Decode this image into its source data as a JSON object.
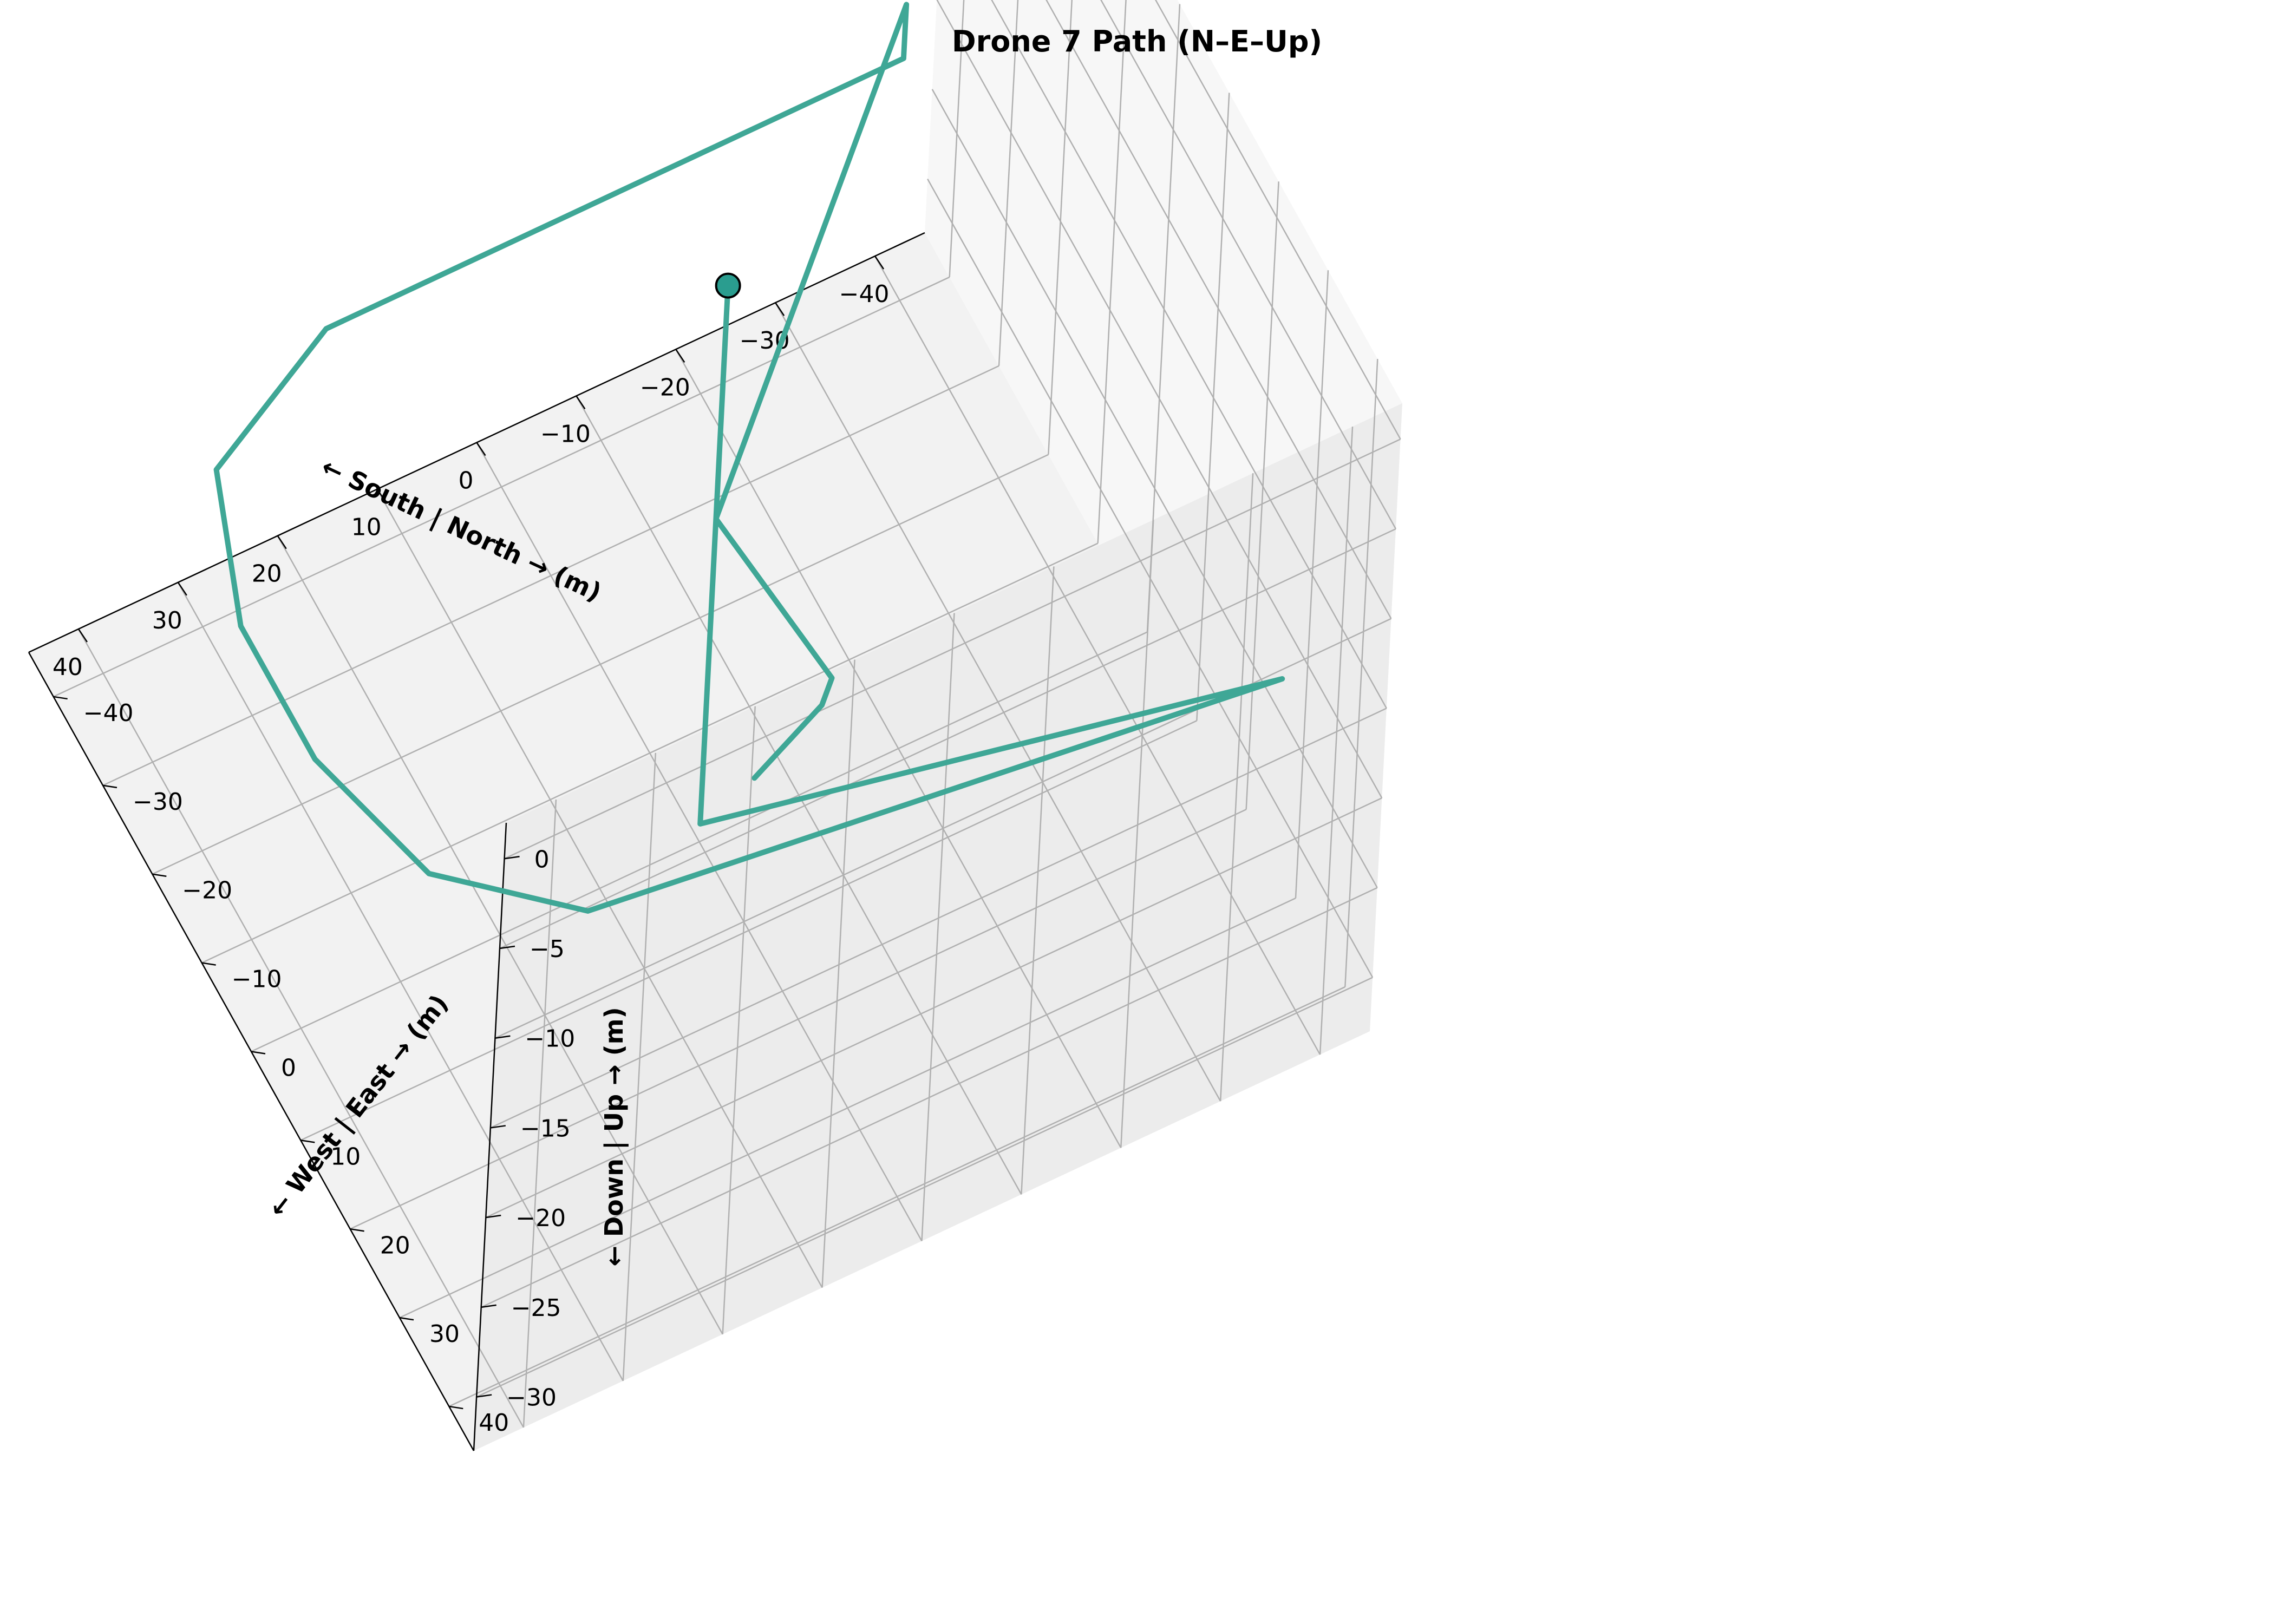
{
  "chart_data": {
    "type": "line3d",
    "title": "Drone 7 Path (N–E–Up)",
    "xlabel": "← South | North → (m)",
    "ylabel": "← West | East → (m)",
    "zlabel": "← Down | Up → (m)",
    "xlim": [
      -45,
      45
    ],
    "ylim": [
      -45,
      45
    ],
    "zlim": [
      -33,
      2
    ],
    "xticks": [
      -40,
      -30,
      -20,
      -10,
      0,
      10,
      20,
      30,
      40
    ],
    "yticks": [
      -40,
      -30,
      -20,
      -10,
      0,
      10,
      20,
      30,
      40
    ],
    "zticks": [
      -30,
      -25,
      -20,
      -15,
      -10,
      -5,
      0
    ],
    "xtick_labels": [
      "−40",
      "−30",
      "−20",
      "−10",
      "0",
      "10",
      "20",
      "30",
      "40"
    ],
    "ytick_labels": [
      "−40",
      "−30",
      "−20",
      "−10",
      "0",
      "10",
      "20",
      "30",
      "40"
    ],
    "ztick_labels": [
      "−30",
      "−25",
      "−20",
      "−15",
      "−10",
      "−5",
      "0"
    ],
    "grid": true,
    "line_color": "#3fa796",
    "marker_color": "#2a9d8f",
    "start_marker": {
      "x": 0,
      "y": 0,
      "z": -2
    },
    "path": [
      {
        "x": 0,
        "y": 0,
        "z": -2
      },
      {
        "x": 0,
        "y": 0,
        "z": -15
      },
      {
        "x": -38,
        "y": -38,
        "z": -15
      },
      {
        "x": -38,
        "y": -38,
        "z": -18
      },
      {
        "x": 20,
        "y": -38,
        "z": -18
      },
      {
        "x": 35,
        "y": -30,
        "z": -18
      },
      {
        "x": 40,
        "y": -15,
        "z": -18
      },
      {
        "x": 40,
        "y": 0,
        "z": -18
      },
      {
        "x": 36,
        "y": 15,
        "z": -18
      },
      {
        "x": 25,
        "y": 25,
        "z": -18
      },
      {
        "x": -38,
        "y": 38,
        "z": -15
      },
      {
        "x": 0,
        "y": 0,
        "z": -32
      },
      {
        "x": 0,
        "y": 0,
        "z": -15
      },
      {
        "x": -10,
        "y": 5,
        "z": -24
      },
      {
        "x": -8,
        "y": 7,
        "z": -24
      },
      {
        "x": -2,
        "y": 6,
        "z": -27
      }
    ]
  }
}
